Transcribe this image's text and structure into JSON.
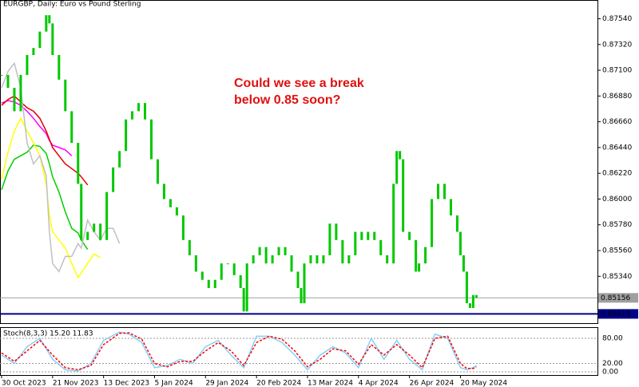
{
  "chart_data": [
    {
      "type": "candlestick",
      "title": "EURGBP, Daily:  Euro vs Pound Sterling",
      "annotation": [
        "Could we see a break",
        "below 0.85 soon?"
      ],
      "color": "#00c800",
      "x": [
        0,
        2,
        4,
        6,
        8,
        10,
        12,
        14,
        15,
        16,
        18,
        20,
        22,
        24,
        25,
        27,
        29,
        31,
        33,
        35,
        37,
        39,
        41,
        43,
        45,
        47,
        49,
        51,
        53,
        55,
        57,
        59,
        61,
        63,
        65,
        67,
        69,
        71,
        73,
        75,
        76,
        77,
        79,
        81,
        83,
        85,
        87,
        89,
        91,
        93,
        94,
        95,
        97,
        99,
        101,
        103,
        105,
        107,
        109,
        111,
        113,
        115,
        117,
        119,
        121,
        123,
        124,
        125,
        126,
        128,
        130,
        131,
        133,
        135,
        137,
        139,
        141,
        143,
        144,
        145,
        146,
        147,
        148,
        149
      ],
      "values": [
        0.8706,
        0.8695,
        0.8675,
        0.8706,
        0.8723,
        0.8729,
        0.8743,
        0.8757,
        0.875,
        0.8723,
        0.8702,
        0.8675,
        0.8648,
        0.8613,
        0.8565,
        0.8572,
        0.8579,
        0.8565,
        0.8606,
        0.8627,
        0.8641,
        0.8668,
        0.8675,
        0.8682,
        0.8668,
        0.8634,
        0.8613,
        0.86,
        0.8593,
        0.8586,
        0.8565,
        0.8552,
        0.8538,
        0.8531,
        0.8524,
        0.8531,
        0.8545,
        0.8545,
        0.8535,
        0.8524,
        0.8504,
        0.8545,
        0.8552,
        0.8559,
        0.8545,
        0.8552,
        0.8559,
        0.8552,
        0.8538,
        0.8524,
        0.8511,
        0.8545,
        0.8552,
        0.8545,
        0.8552,
        0.8579,
        0.8565,
        0.8545,
        0.8552,
        0.8572,
        0.8565,
        0.8572,
        0.8565,
        0.8552,
        0.8545,
        0.8613,
        0.8641,
        0.8634,
        0.8572,
        0.8565,
        0.8538,
        0.8545,
        0.8559,
        0.86,
        0.8613,
        0.86,
        0.8586,
        0.8572,
        0.8552,
        0.8538,
        0.8511,
        0.8507,
        0.8518,
        0.85156
      ],
      "lines": [
        {
          "color": "#ff00ff",
          "x": [
            0,
            12,
            25,
            37,
            50,
            62,
            75,
            87,
            100,
            112,
            125,
            137,
            149
          ],
          "values": [
            0.8682,
            0.8684,
            0.8683,
            0.868,
            0.8675,
            0.8669,
            0.8662,
            0.8656,
            0.865,
            0.8646,
            0.8644,
            0.8642,
            0.8637
          ]
        },
        {
          "color": "#e00000",
          "x": [
            0,
            10,
            20,
            30,
            40,
            50,
            60,
            70,
            80,
            90,
            100,
            110,
            120,
            130,
            140,
            149
          ],
          "values": [
            0.868,
            0.8685,
            0.8688,
            0.8683,
            0.8678,
            0.8675,
            0.8669,
            0.8658,
            0.8651,
            0.8644,
            0.8637,
            0.863,
            0.8626,
            0.8622,
            0.8619,
            0.8612
          ]
        },
        {
          "color": "#00d000",
          "x": [
            0,
            10,
            20,
            30,
            40,
            50,
            60,
            70,
            80,
            90,
            100,
            110,
            120,
            130,
            140,
            149
          ],
          "values": [
            0.8608,
            0.8624,
            0.8634,
            0.8637,
            0.864,
            0.8646,
            0.8645,
            0.8639,
            0.863,
            0.8619,
            0.8606,
            0.8589,
            0.8575,
            0.8571,
            0.8565,
            0.8557
          ]
        },
        {
          "color": "#ffff00",
          "x": [
            0,
            5,
            12,
            22,
            32,
            42,
            50,
            57,
            65,
            72,
            80,
            90,
            100,
            110,
            120,
            130,
            140,
            149
          ],
          "values": [
            0.8617,
            0.864,
            0.8658,
            0.8669,
            0.8658,
            0.8648,
            0.8637,
            0.8613,
            0.8586,
            0.8572,
            0.8565,
            0.8558,
            0.8545,
            0.8533,
            0.8537,
            0.8545,
            0.8553,
            0.855
          ]
        },
        {
          "color": "#c0c0c0",
          "x": [
            0,
            10,
            17,
            22,
            32,
            42,
            50,
            60,
            67,
            75,
            82,
            90,
            100,
            110,
            120,
            125,
            130,
            135,
            140,
            144,
            149
          ],
          "values": [
            0.8695,
            0.8709,
            0.8716,
            0.8695,
            0.8648,
            0.863,
            0.8637,
            0.862,
            0.8572,
            0.8545,
            0.8538,
            0.8551,
            0.8551,
            0.8562,
            0.8558,
            0.8582,
            0.8572,
            0.8565,
            0.8575,
            0.8575,
            0.8562
          ]
        }
      ],
      "levels": [
        {
          "value": 0.85156,
          "color": "#a0a0a0"
        },
        {
          "value": 0.85019,
          "color": "#00008b"
        }
      ],
      "xlim": [
        0,
        187
      ],
      "ylim": [
        0.8494,
        0.877
      ],
      "xticks": [
        {
          "value": 0,
          "label": "30 Oct 2023"
        },
        {
          "value": 16,
          "label": "21 Nov 2023"
        },
        {
          "value": 32,
          "label": "13 Dec 2023"
        },
        {
          "value": 48,
          "label": "5 Jan 2024"
        },
        {
          "value": 64,
          "label": "29 Jan 2024"
        },
        {
          "value": 80,
          "label": "20 Feb 2024"
        },
        {
          "value": 96,
          "label": "13 Mar 2024"
        },
        {
          "value": 112,
          "label": "4 Apr 2024"
        },
        {
          "value": 128,
          "label": "26 Apr 2024"
        },
        {
          "value": 144,
          "label": "20 May 2024"
        }
      ],
      "yticks": [
        {
          "value": 0.8754,
          "label": "0.87540"
        },
        {
          "value": 0.8732,
          "label": "0.87320"
        },
        {
          "value": 0.871,
          "label": "0.87100"
        },
        {
          "value": 0.8688,
          "label": "0.86880"
        },
        {
          "value": 0.8666,
          "label": "0.86660"
        },
        {
          "value": 0.8644,
          "label": "0.86440"
        },
        {
          "value": 0.8622,
          "label": "0.86220"
        },
        {
          "value": 0.86,
          "label": "0.86000"
        },
        {
          "value": 0.8578,
          "label": "0.85780"
        },
        {
          "value": 0.8556,
          "label": "0.85560"
        },
        {
          "value": 0.8534,
          "label": "0.85340"
        }
      ]
    },
    {
      "type": "line",
      "title": "Stoch(8,3,3) 15.20 11.83",
      "x": [
        0,
        4,
        8,
        12,
        16,
        20,
        24,
        28,
        32,
        37,
        40,
        44,
        48,
        52,
        56,
        60,
        64,
        68,
        72,
        76,
        80,
        84,
        88,
        92,
        96,
        100,
        104,
        108,
        112,
        116,
        120,
        124,
        128,
        132,
        136,
        140,
        144,
        146,
        148,
        149
      ],
      "series": [
        {
          "color": "#87cefa",
          "dashed": false,
          "values": [
            40,
            20,
            60,
            80,
            30,
            5,
            2,
            20,
            75,
            95,
            90,
            70,
            10,
            15,
            30,
            20,
            60,
            75,
            40,
            10,
            85,
            85,
            70,
            40,
            5,
            40,
            60,
            45,
            10,
            80,
            30,
            75,
            30,
            5,
            90,
            80,
            10,
            5,
            10,
            15.2
          ]
        },
        {
          "color": "#ff0000",
          "dashed": true,
          "values": [
            45,
            25,
            50,
            75,
            40,
            10,
            5,
            15,
            65,
            92,
            93,
            78,
            20,
            12,
            25,
            25,
            50,
            70,
            50,
            15,
            70,
            85,
            78,
            50,
            12,
            30,
            55,
            50,
            18,
            65,
            40,
            65,
            40,
            10,
            80,
            85,
            20,
            8,
            8,
            11.83
          ]
        }
      ],
      "xlim": [
        0,
        187
      ],
      "ylim": [
        0,
        100
      ],
      "yticks": [
        {
          "value": 80,
          "label": "80.00"
        },
        {
          "value": 20,
          "label": "20.00"
        },
        {
          "value": 0,
          "label": "0.00"
        }
      ]
    }
  ]
}
